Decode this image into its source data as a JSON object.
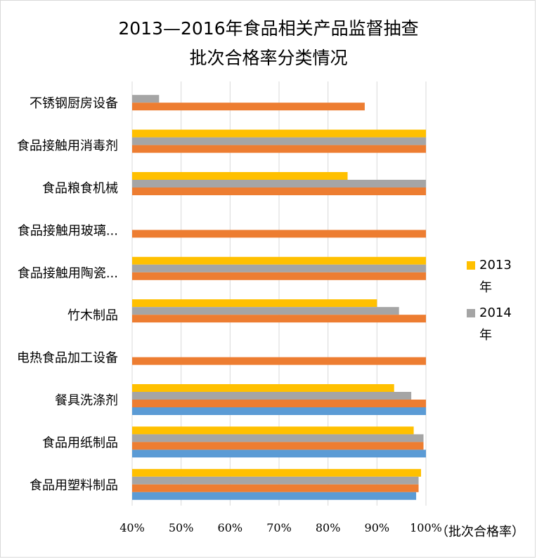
{
  "chart_data": {
    "type": "bar",
    "orientation": "horizontal",
    "title_lines": [
      "2013—2016年食品相关产品监督抽查",
      "批次合格率分类情况"
    ],
    "categories": [
      "不锈钢厨房设备",
      "食品接触用消毒剂",
      "食品粮食机械",
      "食品接触用玻璃...",
      "食品接触用陶瓷...",
      "竹木制品",
      "电热食品加工设备",
      "餐具洗涤剂",
      "食品用纸制品",
      "食品用塑料制品"
    ],
    "series": [
      {
        "name": "2013年",
        "color": "#ffc000",
        "values": [
          null,
          100,
          84,
          null,
          100,
          90,
          null,
          93.5,
          97.5,
          99
        ]
      },
      {
        "name": "2014年",
        "color": "#a5a5a5",
        "values": [
          45.5,
          100,
          100,
          null,
          100,
          94.5,
          null,
          97,
          99.5,
          98.5
        ]
      },
      {
        "name": "",
        "color": "#ed7d31",
        "values": [
          87.5,
          100,
          100,
          100,
          100,
          100,
          100,
          100,
          99.5,
          98.5
        ]
      },
      {
        "name": "",
        "color": "#5b9bd5",
        "values": [
          null,
          null,
          null,
          null,
          null,
          null,
          null,
          100,
          100,
          98
        ]
      }
    ],
    "xlim": [
      40,
      100
    ],
    "xticks": [
      "40%",
      "50%",
      "60%",
      "70%",
      "80%",
      "90%",
      "100%"
    ],
    "xticks_values": [
      40,
      50,
      60,
      70,
      80,
      90,
      100
    ],
    "x_unit_label": "（批次合格率）",
    "grid": true,
    "legend_position": "right"
  }
}
